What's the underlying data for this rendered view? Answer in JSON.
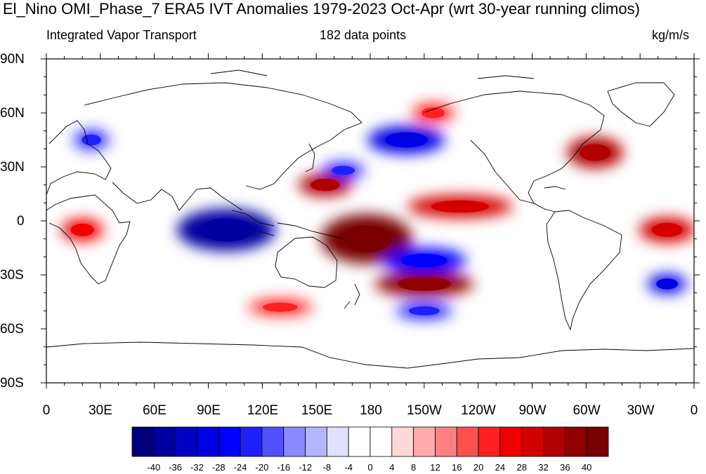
{
  "header": {
    "title": "El_Nino OMI_Phase_7 ERA5 IVT Anomalies 1979-2023 Oct-Apr (wrt 30-year running climos)",
    "left_label": "Integrated Vapor Transport",
    "center_label": "182 data points",
    "right_label": "kg/m/s"
  },
  "chart_data": {
    "type": "heatmap",
    "projection": "cylindrical equidistant, 0-360 longitude, centered on 180",
    "variable": "IVT anomaly",
    "units": "kg/m/s",
    "lat_ticks": [
      "90N",
      "60N",
      "30N",
      "0",
      "30S",
      "60S",
      "90S"
    ],
    "lon_ticks": [
      "0",
      "30E",
      "60E",
      "90E",
      "120E",
      "150E",
      "180",
      "150W",
      "120W",
      "90W",
      "60W",
      "30W",
      "0"
    ],
    "colorbar_levels": [
      -40,
      -36,
      -32,
      -28,
      -24,
      -20,
      -16,
      -12,
      -8,
      -4,
      0,
      4,
      8,
      12,
      16,
      20,
      24,
      28,
      32,
      36,
      40
    ],
    "colorbar_labels": [
      "-40",
      "-36",
      "-32",
      "-28",
      "-24",
      "-20",
      "-16",
      "-12",
      "-8",
      "-4",
      "0",
      "4",
      "8",
      "12",
      "16",
      "20",
      "24",
      "28",
      "32",
      "36",
      "40"
    ],
    "colorbar_colors": [
      "#00007a",
      "#0000a0",
      "#0000c4",
      "#0000e4",
      "#0000ff",
      "#2020ff",
      "#5050ff",
      "#8a8aff",
      "#b4b4ff",
      "#e0e0ff",
      "#ffffff",
      "#ffffff",
      "#ffd8d8",
      "#ffabab",
      "#ff8080",
      "#ff5050",
      "#ff2020",
      "#f00000",
      "#d40000",
      "#b00000",
      "#900000",
      "#780000"
    ],
    "anomaly_features": [
      {
        "lon": 100,
        "lat": -5,
        "value": -40
      },
      {
        "lon": 178,
        "lat": -10,
        "value": 40
      },
      {
        "lon": 210,
        "lat": -35,
        "value": 38
      },
      {
        "lon": 210,
        "lat": -22,
        "value": -28
      },
      {
        "lon": 200,
        "lat": 45,
        "value": -32
      },
      {
        "lon": 230,
        "lat": 8,
        "value": 30
      },
      {
        "lon": 155,
        "lat": 20,
        "value": 34
      },
      {
        "lon": 305,
        "lat": 38,
        "value": 34
      },
      {
        "lon": 345,
        "lat": -35,
        "value": -30
      },
      {
        "lon": 345,
        "lat": -5,
        "value": 30
      },
      {
        "lon": 20,
        "lat": -5,
        "value": 24
      },
      {
        "lon": 130,
        "lat": -48,
        "value": 22
      },
      {
        "lon": 25,
        "lat": 45,
        "value": -24
      },
      {
        "lon": 165,
        "lat": 28,
        "value": -22
      },
      {
        "lon": 210,
        "lat": -50,
        "value": -22
      },
      {
        "lon": 215,
        "lat": 60,
        "value": 22
      }
    ]
  }
}
